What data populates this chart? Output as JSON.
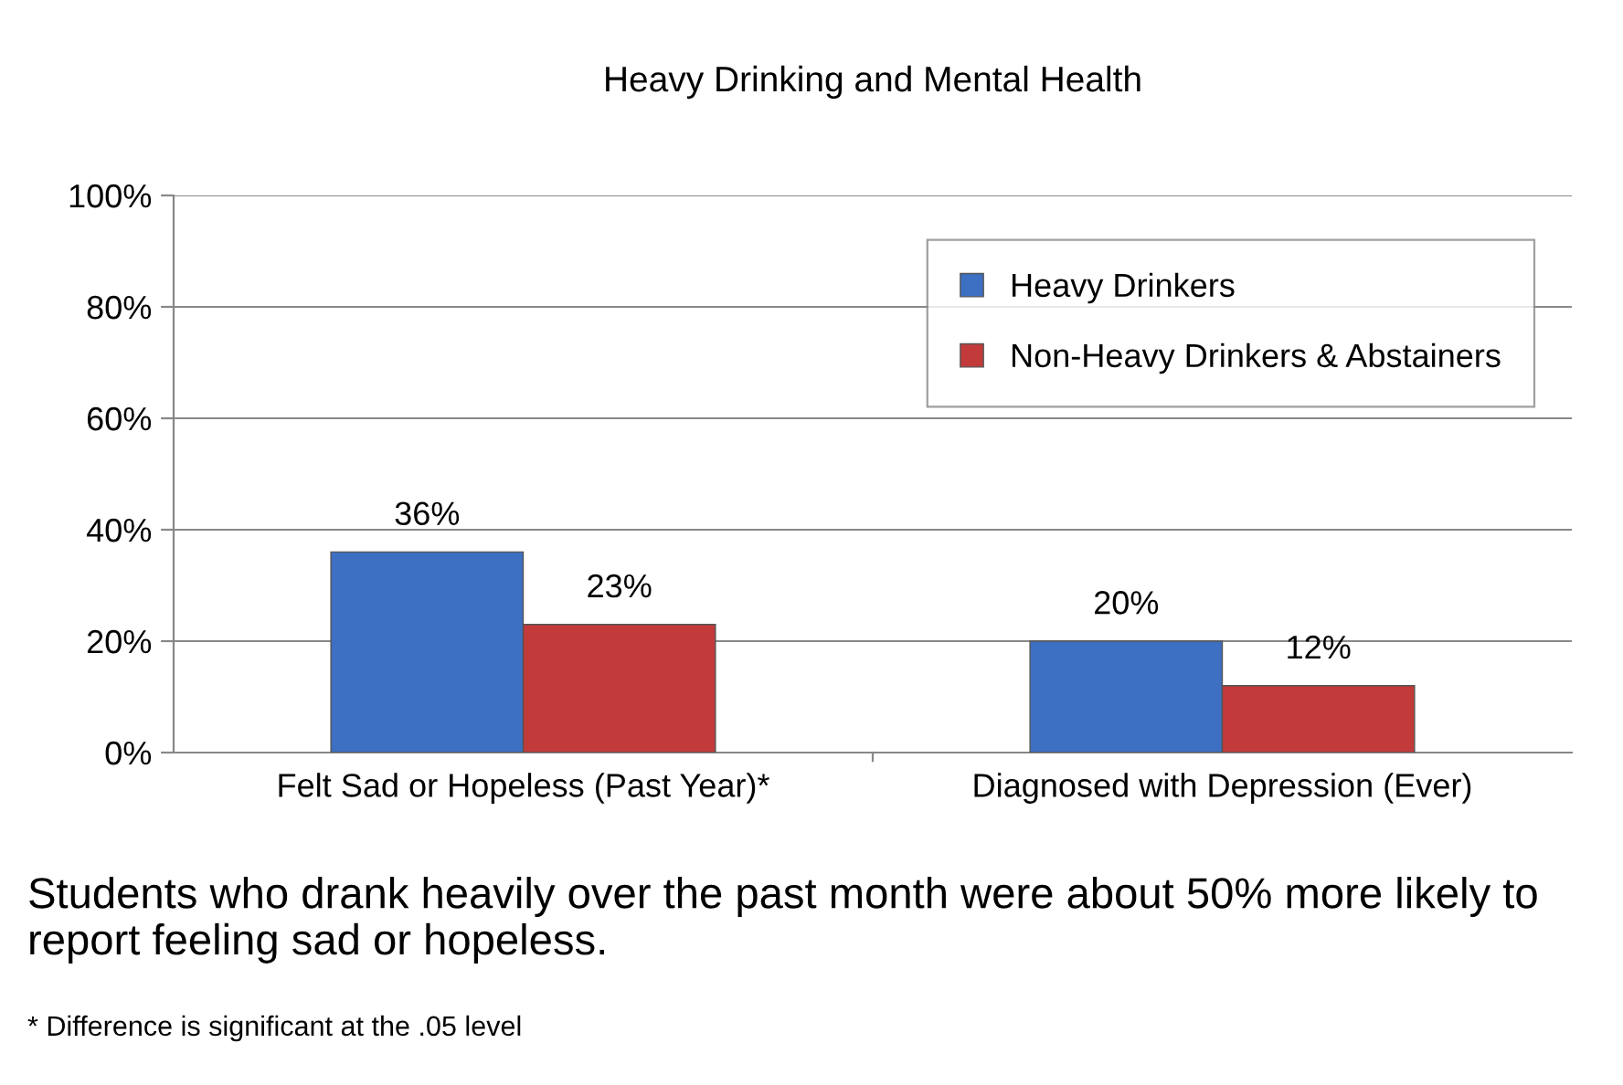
{
  "chart_data": {
    "type": "bar",
    "title": "Heavy Drinking and Mental Health",
    "categories": [
      "Felt Sad or Hopeless (Past Year)*",
      "Diagnosed with Depression (Ever)"
    ],
    "series": [
      {
        "name": "Heavy Drinkers",
        "color": "#3d70c2",
        "values": [
          36,
          20
        ],
        "value_labels": [
          "36%",
          "20%"
        ]
      },
      {
        "name": "Non-Heavy Drinkers & Abstainers",
        "color": "#c23a3a",
        "values": [
          23,
          12
        ],
        "value_labels": [
          "23%",
          "12%"
        ]
      }
    ],
    "ylim": [
      0,
      100
    ],
    "yticks": [
      {
        "value": 0,
        "label": "0%"
      },
      {
        "value": 20,
        "label": "20%"
      },
      {
        "value": 40,
        "label": "40%"
      },
      {
        "value": 60,
        "label": "60%"
      },
      {
        "value": 80,
        "label": "80%"
      },
      {
        "value": 100,
        "label": "100%"
      }
    ],
    "grid": "y",
    "legend": "top right",
    "annotations": [
      "Students who drank heavily over the past month were about 50% more likely to report feeling sad or hopeless.",
      "* Difference is significant at the .05 level"
    ]
  }
}
